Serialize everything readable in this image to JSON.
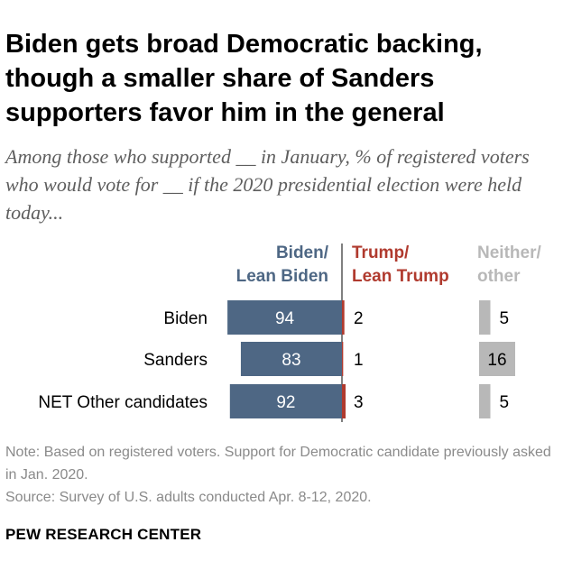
{
  "header": {
    "title": "Biden gets broad Democratic backing, though a smaller share of Sanders supporters favor him in the general",
    "subtitle": "Among those who supported __ in January, % of registered voters who would vote for __ if the 2020 presidential election were held today..."
  },
  "chart_data": {
    "type": "bar",
    "orientation": "horizontal",
    "stacked": false,
    "categories": [
      "Biden",
      "Sanders",
      "NET Other candidates"
    ],
    "series": [
      {
        "name": "Biden/ Lean Biden",
        "header_lines": [
          "Biden/",
          "Lean Biden"
        ],
        "values": [
          94,
          83,
          92
        ],
        "color": "#4e6784",
        "label_color": "#ffffff",
        "header_color": "#4e6784",
        "direction": "left"
      },
      {
        "name": "Trump/ Lean Trump",
        "header_lines": [
          "Trump/",
          "Lean Trump"
        ],
        "values": [
          2,
          1,
          3
        ],
        "color": "#b03a2e",
        "label_color": "#000000",
        "header_color": "#b03a2e",
        "direction": "right"
      },
      {
        "name": "Neither/ other",
        "header_lines": [
          "Neither/",
          "other"
        ],
        "values": [
          5,
          16,
          5
        ],
        "color": "#b8b8b8",
        "label_color": "#000000",
        "header_color": "#b8b8b8",
        "direction": "right"
      }
    ],
    "axis_line_color": "#000000",
    "grid": false,
    "legend": "column headers above bars"
  },
  "footer": {
    "note": "Note: Based on registered voters. Support for Democratic candidate previously asked in Jan. 2020.",
    "source": "Source: Survey of U.S. adults conducted Apr. 8-12, 2020.",
    "org": "PEW RESEARCH CENTER"
  }
}
